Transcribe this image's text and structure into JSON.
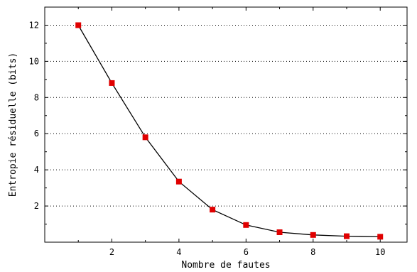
{
  "chart_data": {
    "type": "line",
    "title": "",
    "xlabel": "Nombre de fautes",
    "ylabel": "Entropie résiduelle (bits)",
    "xlim": [
      0,
      10.8
    ],
    "ylim": [
      0,
      13.0
    ],
    "x_ticks": [
      2,
      4,
      6,
      8,
      10
    ],
    "y_ticks": [
      2,
      4,
      6,
      8,
      10,
      12
    ],
    "x_tick_labels": [
      "2",
      "4",
      "6",
      "8",
      "10"
    ],
    "y_tick_labels": [
      "2",
      "4",
      "6",
      "8",
      "10",
      "12"
    ],
    "grid": "horizontal-dotted",
    "legend": "none",
    "series": [
      {
        "x": [
          1,
          2,
          3,
          4,
          5,
          6,
          7,
          8,
          9,
          10
        ],
        "values": [
          12.0,
          8.8,
          5.8,
          3.35,
          1.8,
          0.95,
          0.55,
          0.4,
          0.33,
          0.3
        ],
        "line_color": "#000000",
        "marker_color": "#e00000",
        "marker": "square"
      }
    ]
  }
}
